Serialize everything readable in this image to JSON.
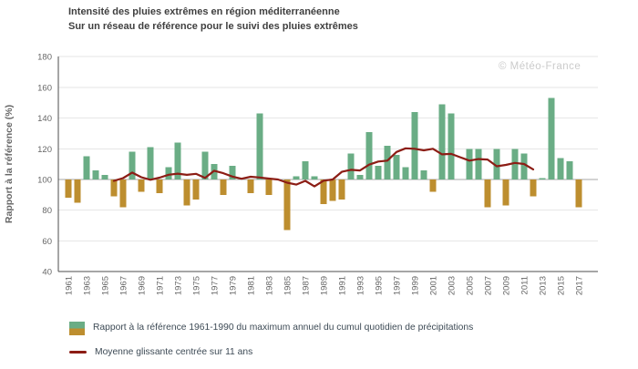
{
  "title": "Intensité des pluies extrêmes en région méditerranéenne",
  "subtitle": "Sur un réseau de référence pour le suivi des pluies extrêmes",
  "watermark": "© Météo-France",
  "legend": {
    "items": [
      {
        "label": "Rapport à la référence 1961-1990 du maximum annuel du cumul quotidien de précipitations",
        "swatch": "split-bar",
        "colors": [
          "#6aad85",
          "#bd8e2f"
        ]
      },
      {
        "label": "Moyenne glissante centrée sur 11 ans",
        "swatch": "line",
        "colors": [
          "#8c1d15"
        ]
      }
    ]
  },
  "colors": {
    "above_reference": "#6aad85",
    "below_reference": "#bd8e2f",
    "moving_average": "#8c1d15",
    "gridline": "#e6e6e6",
    "baseline_100": "#a7a7a7",
    "axis": "#4d4d4d",
    "tick_text": "#666666",
    "title_text": "#3f3f3f",
    "legend_text": "#3d4a55",
    "watermark_text": "#cbcbcb"
  },
  "y_axis": {
    "title": "Rapport à la référence (%)",
    "min": 40,
    "max": 180,
    "ticks": [
      180,
      160,
      140,
      120,
      100,
      80,
      60,
      40
    ]
  },
  "x_axis": {
    "tick_labels": [
      "1961",
      "1963",
      "1965",
      "1967",
      "1969",
      "1971",
      "1973",
      "1975",
      "1977",
      "1979",
      "1981",
      "1983",
      "1985",
      "1987",
      "1989",
      "1991",
      "1993",
      "1995",
      "1997",
      "1999",
      "2001",
      "2003",
      "2005",
      "2007",
      "2009",
      "2011",
      "2013",
      "2015",
      "2017"
    ]
  },
  "chart_data": {
    "type": "bar",
    "title": "Intensité des pluies extrêmes en région méditerranéenne",
    "subtitle": "Sur un réseau de référence pour le suivi des pluies extrêmes",
    "xlabel": "",
    "ylabel": "Rapport à la référence (%)",
    "unit": "%",
    "ylim": [
      40,
      180
    ],
    "grid": true,
    "legend_position": "bottom-left",
    "baseline": 100,
    "x": [
      1961,
      1962,
      1963,
      1964,
      1965,
      1966,
      1967,
      1968,
      1969,
      1970,
      1971,
      1972,
      1973,
      1974,
      1975,
      1976,
      1977,
      1978,
      1979,
      1980,
      1981,
      1982,
      1983,
      1984,
      1985,
      1986,
      1987,
      1988,
      1989,
      1990,
      1991,
      1992,
      1993,
      1994,
      1995,
      1996,
      1997,
      1998,
      1999,
      2000,
      2001,
      2002,
      2003,
      2004,
      2005,
      2006,
      2007,
      2008,
      2009,
      2010,
      2011,
      2012,
      2013,
      2014,
      2015,
      2016,
      2017
    ],
    "series": [
      {
        "name": "Rapport à la référence 1961-1990 du maximum annuel du cumul quotidien de précipitations",
        "type": "bar",
        "values": [
          88,
          85,
          115,
          106,
          103,
          89,
          82,
          118,
          92,
          121,
          91,
          108,
          124,
          83,
          87,
          118,
          110,
          90,
          109,
          100,
          91,
          143,
          90,
          100,
          67,
          102,
          112,
          102,
          84,
          86,
          87,
          117,
          103,
          131,
          109,
          122,
          116,
          108,
          144,
          106,
          92,
          149,
          143,
          100,
          120,
          120,
          82,
          120,
          83,
          120,
          117,
          89,
          101,
          153,
          114,
          112,
          82
        ]
      },
      {
        "name": "Moyenne glissante centrée sur 11 ans",
        "type": "line",
        "x_start": 1966,
        "x_end": 2012,
        "values": [
          99.1,
          100.9,
          104.5,
          101.5,
          99.8,
          101.2,
          103.1,
          103.8,
          103.0,
          103.7,
          101.0,
          105.7,
          104.1,
          101.9,
          100.5,
          101.8,
          101.3,
          100.6,
          100.0,
          97.9,
          96.7,
          99.1,
          95.5,
          99.2,
          100.0,
          105.0,
          106.3,
          105.9,
          109.7,
          111.7,
          112.3,
          117.9,
          120.3,
          120.0,
          119.0,
          120.0,
          116.4,
          116.7,
          114.5,
          112.3,
          113.3,
          113.0,
          108.6,
          109.5,
          110.8,
          110.1,
          106.6
        ]
      }
    ]
  }
}
